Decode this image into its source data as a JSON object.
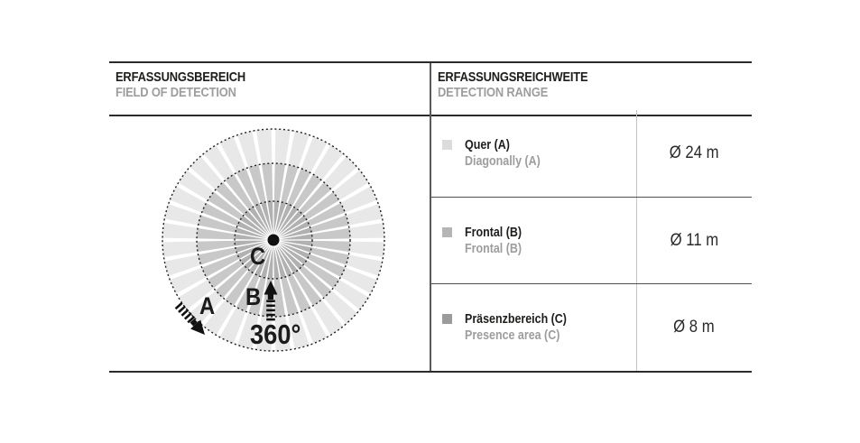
{
  "left_panel": {
    "title": "ERFASSUNGSBEREICH",
    "subtitle": "FIELD OF DETECTION",
    "diagram": {
      "rotation_label": "360°",
      "sectors": 36,
      "spoke_color": "#ffffff",
      "outline_color": "#1f1f1f",
      "zones": [
        {
          "id": "A",
          "label": "A",
          "color": "#e8e8e8"
        },
        {
          "id": "B",
          "label": "B",
          "color": "#c8c8c8"
        },
        {
          "id": "C",
          "label": "C",
          "color": "#b1b1b1"
        }
      ]
    }
  },
  "right_panel": {
    "title": "ERFASSUNGSREICHWEITE",
    "subtitle": "DETECTION RANGE",
    "rows": [
      {
        "swatch_color": "#dcdcdc",
        "label_de": "Quer (A)",
        "label_en": "Diagonally (A)",
        "value": "Ø 24 m"
      },
      {
        "swatch_color": "#b5b5b5",
        "label_de": "Frontal (B)",
        "label_en": "Frontal (B)",
        "value": "Ø 11 m"
      },
      {
        "swatch_color": "#9b9b9b",
        "label_de": "Präsenzbereich (C)",
        "label_en": "Presence area (C)",
        "value": "Ø 8 m"
      }
    ]
  }
}
